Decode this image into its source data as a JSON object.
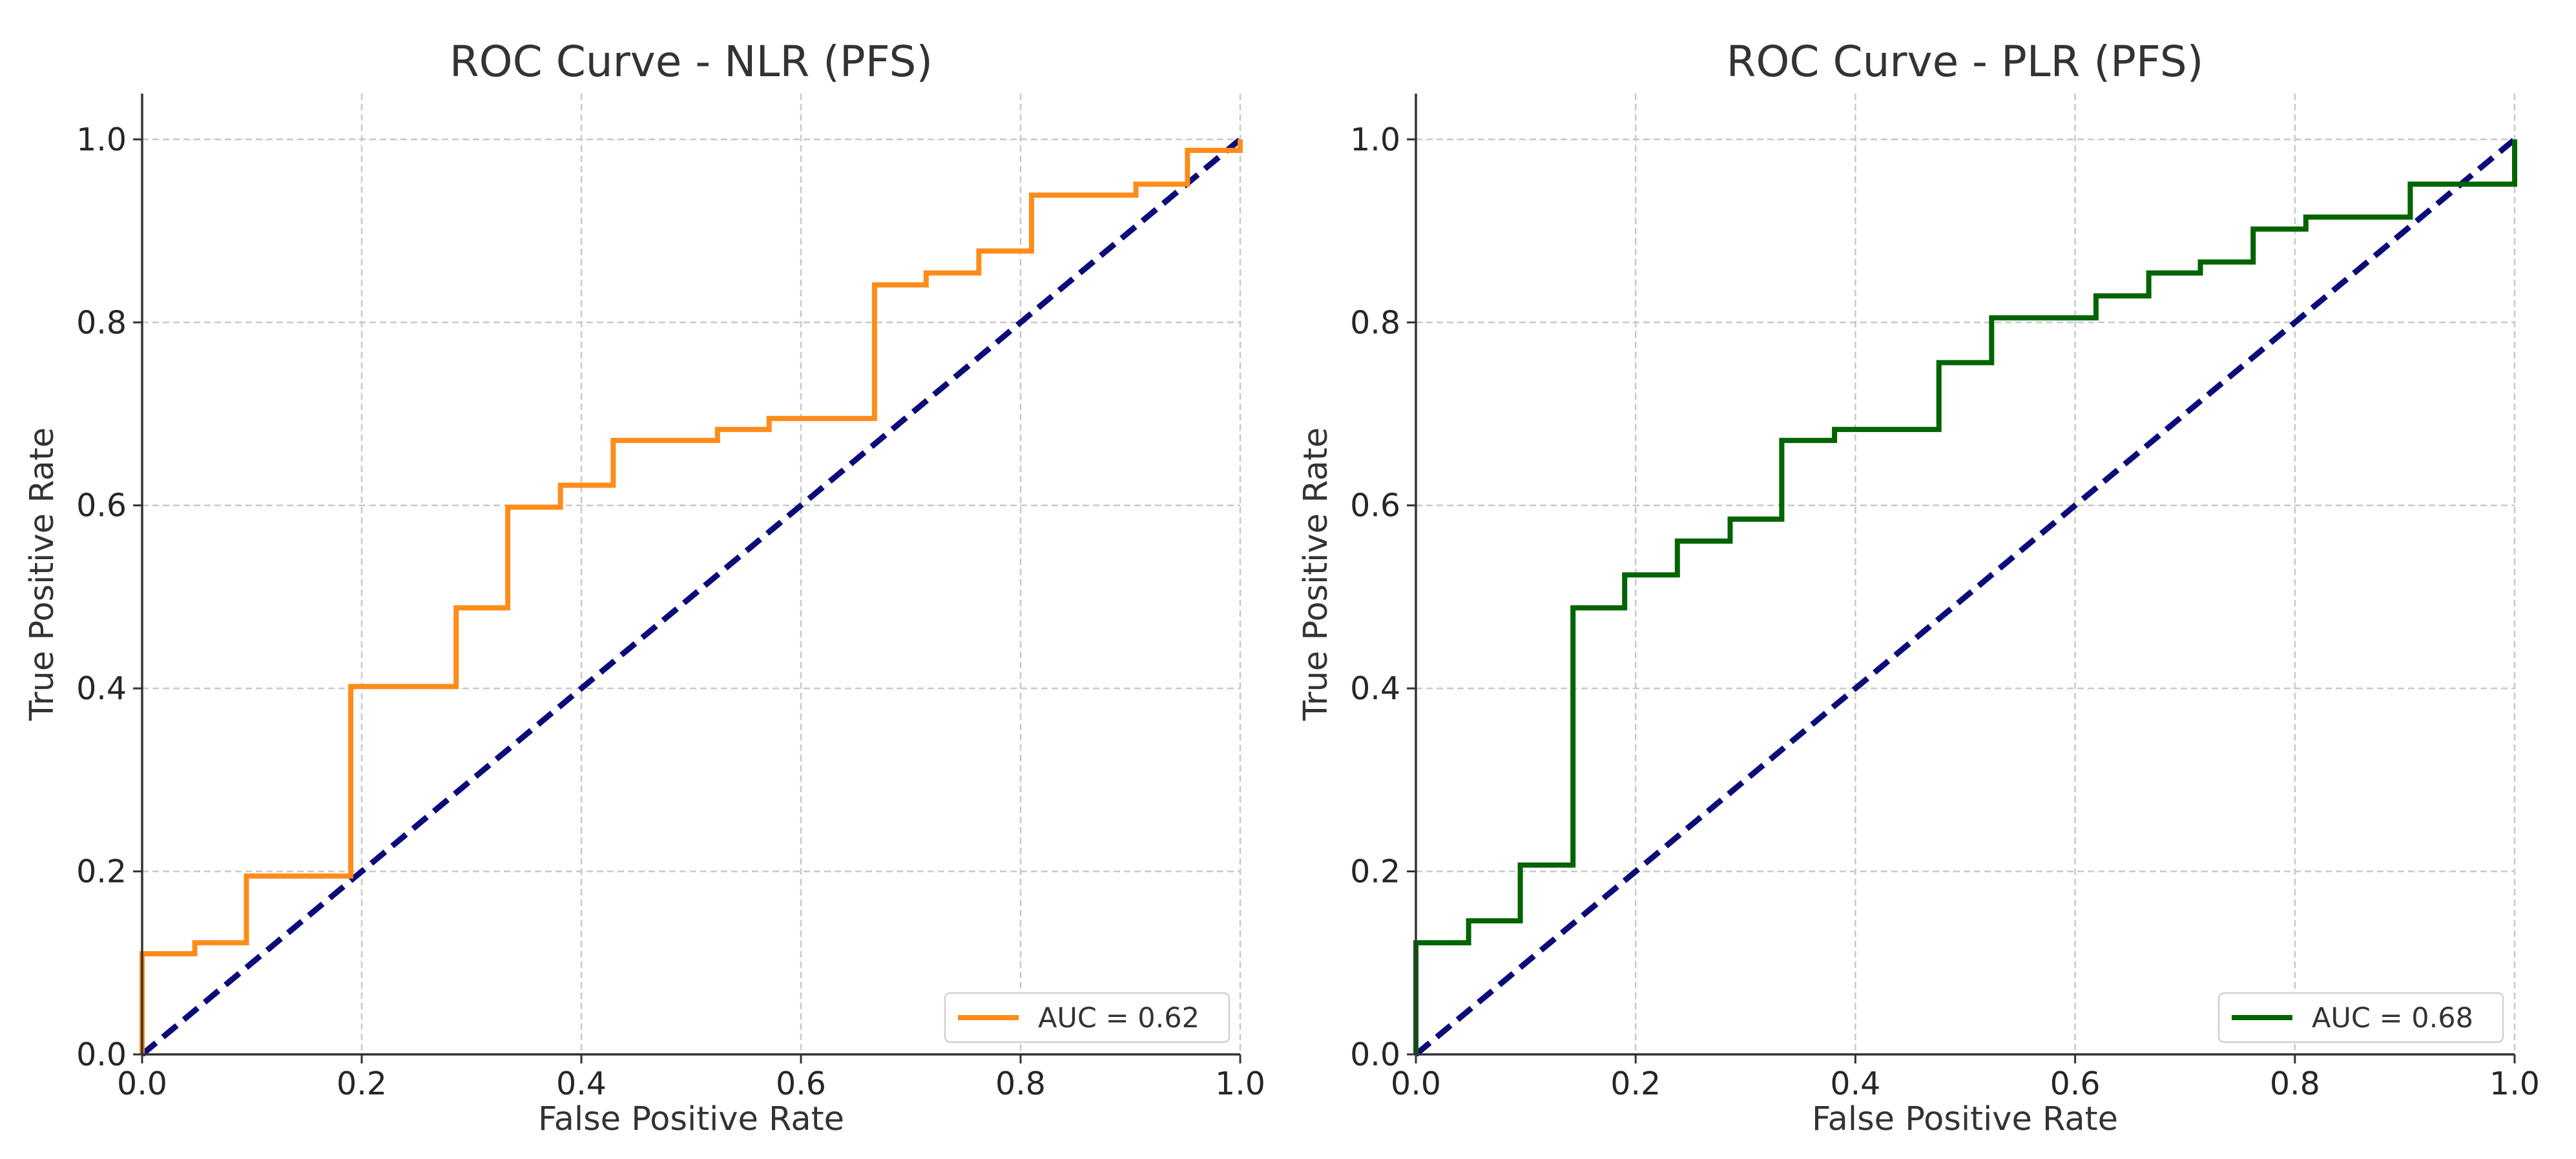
{
  "chart_data": [
    {
      "type": "line",
      "title": "ROC Curve - NLR (PFS)",
      "xlabel": "False Positive Rate",
      "ylabel": "True Positive Rate",
      "xlim": [
        0.0,
        1.0
      ],
      "ylim": [
        0.0,
        1.05
      ],
      "xticks": [
        "0.0",
        "0.2",
        "0.4",
        "0.6",
        "0.8",
        "1.0"
      ],
      "yticks": [
        "0.0",
        "0.2",
        "0.4",
        "0.6",
        "0.8",
        "1.0"
      ],
      "grid": true,
      "legend_position": "bottom-right",
      "series": [
        {
          "name": "AUC = 0.62",
          "color": "#ff8c1a",
          "step": true,
          "x": [
            0.0,
            0.0,
            0.048,
            0.048,
            0.095,
            0.095,
            0.19,
            0.19,
            0.286,
            0.286,
            0.333,
            0.333,
            0.381,
            0.381,
            0.429,
            0.429,
            0.524,
            0.524,
            0.571,
            0.571,
            0.667,
            0.667,
            0.714,
            0.714,
            0.762,
            0.762,
            0.81,
            0.81,
            0.905,
            0.905,
            0.952,
            0.952,
            1.0,
            1.0
          ],
          "y": [
            0.0,
            0.11,
            0.11,
            0.122,
            0.122,
            0.195,
            0.195,
            0.402,
            0.402,
            0.488,
            0.488,
            0.598,
            0.598,
            0.622,
            0.622,
            0.671,
            0.671,
            0.683,
            0.683,
            0.695,
            0.695,
            0.841,
            0.841,
            0.854,
            0.854,
            0.878,
            0.878,
            0.939,
            0.939,
            0.951,
            0.951,
            0.988,
            0.988,
            1.0
          ]
        },
        {
          "name": "",
          "color": "#0b0b7a",
          "dashed": true,
          "x": [
            0.0,
            1.0
          ],
          "y": [
            0.0,
            1.0
          ]
        }
      ]
    },
    {
      "type": "line",
      "title": "ROC Curve - PLR (PFS)",
      "xlabel": "False Positive Rate",
      "ylabel": "True Positive Rate",
      "xlim": [
        0.0,
        1.0
      ],
      "ylim": [
        0.0,
        1.05
      ],
      "xticks": [
        "0.0",
        "0.2",
        "0.4",
        "0.6",
        "0.8",
        "1.0"
      ],
      "yticks": [
        "0.0",
        "0.2",
        "0.4",
        "0.6",
        "0.8",
        "1.0"
      ],
      "grid": true,
      "legend_position": "bottom-right",
      "series": [
        {
          "name": "AUC = 0.68",
          "color": "#006400",
          "step": true,
          "x": [
            0.0,
            0.0,
            0.048,
            0.048,
            0.095,
            0.095,
            0.143,
            0.143,
            0.19,
            0.19,
            0.238,
            0.238,
            0.286,
            0.286,
            0.333,
            0.333,
            0.381,
            0.381,
            0.476,
            0.476,
            0.524,
            0.524,
            0.619,
            0.619,
            0.667,
            0.667,
            0.714,
            0.714,
            0.762,
            0.762,
            0.81,
            0.81,
            0.905,
            0.905,
            1.0,
            1.0
          ],
          "y": [
            0.0,
            0.122,
            0.122,
            0.146,
            0.146,
            0.207,
            0.207,
            0.488,
            0.488,
            0.524,
            0.524,
            0.561,
            0.561,
            0.585,
            0.585,
            0.671,
            0.671,
            0.683,
            0.683,
            0.756,
            0.756,
            0.805,
            0.805,
            0.829,
            0.829,
            0.854,
            0.854,
            0.866,
            0.866,
            0.902,
            0.902,
            0.915,
            0.915,
            0.951,
            0.951,
            1.0
          ]
        },
        {
          "name": "",
          "color": "#0b0b7a",
          "dashed": true,
          "x": [
            0.0,
            1.0
          ],
          "y": [
            0.0,
            1.0
          ]
        }
      ]
    }
  ]
}
